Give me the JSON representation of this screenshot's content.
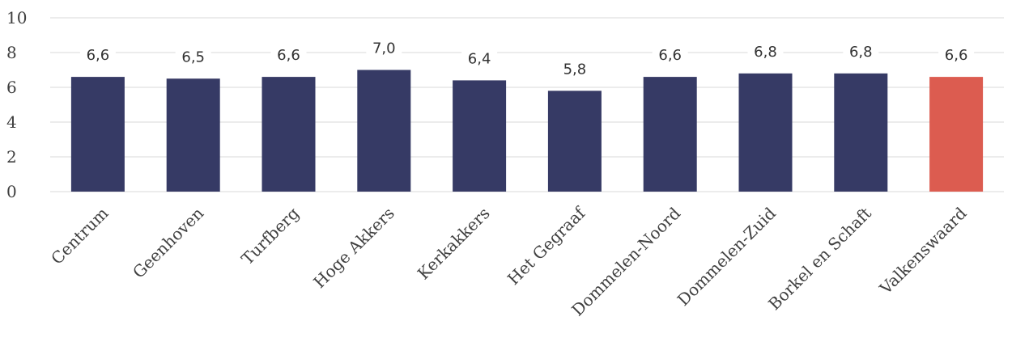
{
  "chart_data": {
    "type": "bar",
    "title": "",
    "xlabel": "",
    "ylabel": "",
    "categories": [
      "Centrum",
      "Geenhoven",
      "Turfberg",
      "Hoge Akkers",
      "Kerkakkers",
      "Het Gegraaf",
      "Dommelen-Noord",
      "Dommelen-Zuid",
      "Borkel en Schaft",
      "Valkenswaard"
    ],
    "values": [
      6.6,
      6.5,
      6.6,
      7.0,
      6.4,
      5.8,
      6.6,
      6.8,
      6.8,
      6.6
    ],
    "data_labels": [
      "6,6",
      "6,5",
      "6,6",
      "7,0",
      "6,4",
      "5,8",
      "6,6",
      "6,8",
      "6,8",
      "6,6"
    ],
    "ylim": [
      0,
      10
    ],
    "yticks": [
      0,
      2,
      4,
      6,
      8,
      10
    ],
    "grid": true,
    "legend": "none",
    "colors": {
      "default_bar": "#363a65",
      "highlight_bar": "#dc5c50",
      "highlight_category": "Valkenswaard",
      "grid": "#d9d9d9"
    }
  }
}
